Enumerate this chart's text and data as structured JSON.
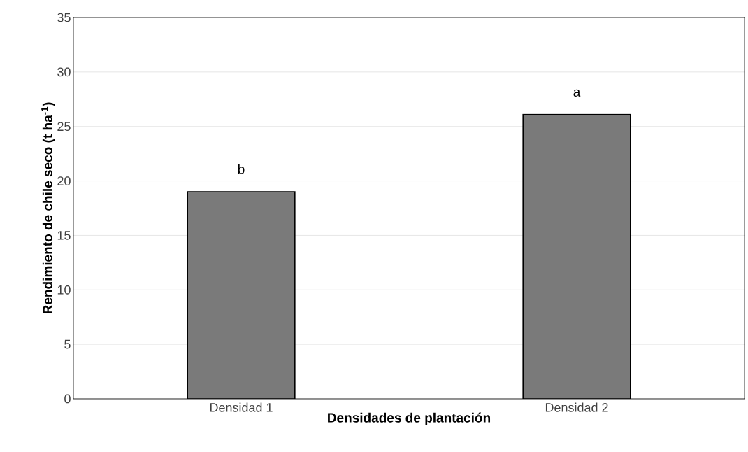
{
  "chart_data": {
    "type": "bar",
    "xlabel": "Densidades de plantación",
    "ylabel": "Rendimiento de chile seco (t ha$^{-1}$)",
    "categories": [
      "Densidad 1",
      "Densidad 2"
    ],
    "values": [
      19.0,
      26.1
    ],
    "color": "#7a7a7a",
    "ylim": [
      0,
      35
    ],
    "yticks": [
      0,
      5,
      10,
      15,
      20,
      25,
      30,
      35
    ],
    "grid": "y",
    "annotations": [
      "b",
      "a"
    ]
  }
}
